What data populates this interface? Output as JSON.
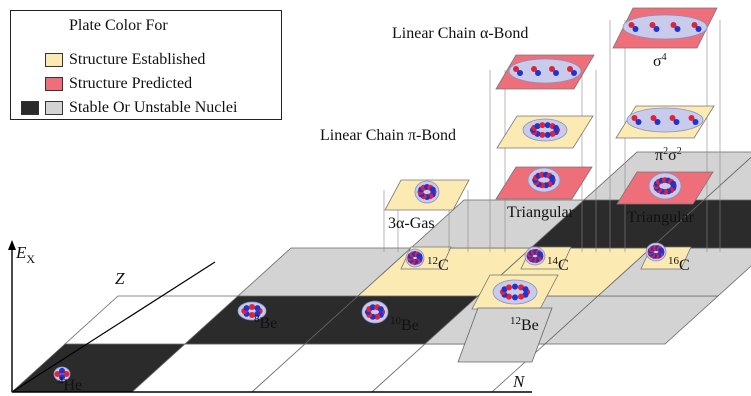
{
  "legend": {
    "title": "Plate Color For",
    "items": [
      {
        "label": "Structure Established",
        "colors": [
          "#fbeab2"
        ]
      },
      {
        "label": "Structure Predicted",
        "colors": [
          "#ee6e7a"
        ]
      },
      {
        "label": "Stable Or Unstable Nuclei",
        "colors": [
          "#2b2b2b",
          "#d3d3d3"
        ]
      }
    ]
  },
  "axes": {
    "ex_main": "E",
    "ex_sub": "X",
    "z": "Z",
    "n": "N"
  },
  "nuclei": [
    {
      "mass": "4",
      "symbol": "He"
    },
    {
      "mass": "8",
      "symbol": "Be"
    },
    {
      "mass": "10",
      "symbol": "Be"
    },
    {
      "mass": "12",
      "symbol": "Be"
    },
    {
      "mass": "12",
      "symbol": "C"
    },
    {
      "mass": "14",
      "symbol": "C"
    },
    {
      "mass": "16",
      "symbol": "C"
    }
  ],
  "structure_labels": {
    "gas": "3α-Gas",
    "tri14": "Triangular",
    "tri16": "Triangular",
    "pi_bond": "Linear Chain π-Bond",
    "alpha_bond": "Linear Chain α-Bond",
    "pi2sigma2_base": "π",
    "pi2sigma2_sup1": "2",
    "pi2sigma2_mid": "σ",
    "pi2sigma2_sup2": "2",
    "sigma4_base": "σ",
    "sigma4_sup": "4"
  },
  "colors": {
    "established": "#fbeab2",
    "predicted": "#ee6e7a",
    "dark": "#2b2b2b",
    "light": "#d3d3d3",
    "proton": "#e0233a",
    "neutron": "#2233cc",
    "cloud": "#c8cbea"
  }
}
